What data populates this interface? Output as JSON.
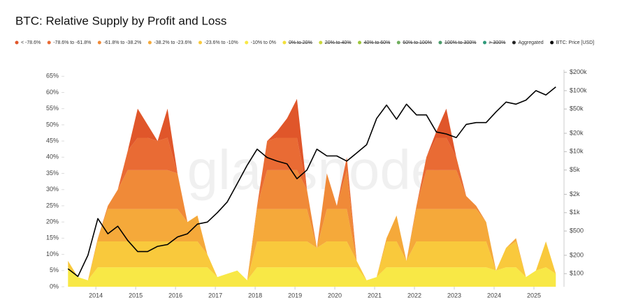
{
  "chart_data": {
    "type": "stacked_area",
    "title": "BTC: Relative Supply by Profit and Loss",
    "watermark": "glassnode",
    "x": [
      2013.3,
      2013.55,
      2013.8,
      2014.05,
      2014.3,
      2014.55,
      2014.8,
      2015.05,
      2015.3,
      2015.55,
      2015.8,
      2016.05,
      2016.3,
      2016.55,
      2016.8,
      2017.05,
      2017.3,
      2017.55,
      2017.8,
      2018.05,
      2018.3,
      2018.55,
      2018.8,
      2019.05,
      2019.3,
      2019.55,
      2019.8,
      2020.05,
      2020.3,
      2020.55,
      2020.8,
      2021.05,
      2021.3,
      2021.55,
      2021.8,
      2022.05,
      2022.3,
      2022.55,
      2022.8,
      2023.05,
      2023.3,
      2023.55,
      2023.8,
      2024.05,
      2024.3,
      2024.55,
      2024.8,
      2025.05,
      2025.3,
      2025.55
    ],
    "xlim": [
      2013.26,
      2025.72
    ],
    "xticks": [
      2014,
      2015,
      2016,
      2017,
      2018,
      2019,
      2020,
      2021,
      2022,
      2023,
      2024,
      2025
    ],
    "ylim": [
      0,
      67
    ],
    "yticks": [
      {
        "value": 0,
        "label": "0%"
      },
      {
        "value": 5,
        "label": "5%"
      },
      {
        "value": 10,
        "label": "10%"
      },
      {
        "value": 15,
        "label": "15%"
      },
      {
        "value": 20,
        "label": "20%"
      },
      {
        "value": 25,
        "label": "25%"
      },
      {
        "value": 30,
        "label": "30%"
      },
      {
        "value": 35,
        "label": "35%"
      },
      {
        "value": 40,
        "label": "40%"
      },
      {
        "value": 45,
        "label": "45%"
      },
      {
        "value": 50,
        "label": "50%"
      },
      {
        "value": 55,
        "label": "55%"
      },
      {
        "value": 60,
        "label": "60%"
      },
      {
        "value": 65,
        "label": "65%"
      }
    ],
    "y2lim": [
      61,
      220000
    ],
    "y2_log": true,
    "y2ticks": [
      {
        "value": 100,
        "label": "$100"
      },
      {
        "value": 200,
        "label": "$200"
      },
      {
        "value": 500,
        "label": "$500"
      },
      {
        "value": 1000,
        "label": "$1k"
      },
      {
        "value": 2000,
        "label": "$2k"
      },
      {
        "value": 5000,
        "label": "$5k"
      },
      {
        "value": 10000,
        "label": "$10k"
      },
      {
        "value": 20000,
        "label": "$20k"
      },
      {
        "value": 50000,
        "label": "$50k"
      },
      {
        "value": 100000,
        "label": "$100k"
      },
      {
        "value": 200000,
        "label": "$200k"
      }
    ],
    "grid": false,
    "series": [
      {
        "name": "< -78.6%",
        "color": "#e0562a",
        "values": [
          0,
          0,
          0,
          0,
          0,
          0,
          0,
          9,
          4,
          0,
          9,
          0,
          0,
          0,
          0,
          0,
          0,
          0,
          0,
          0,
          0,
          2,
          6,
          12,
          0,
          0,
          0,
          0,
          0,
          0,
          0,
          0,
          0,
          0,
          0,
          0,
          0,
          2,
          9,
          0,
          0,
          0,
          0,
          0,
          0,
          0,
          0,
          0,
          0,
          0
        ]
      },
      {
        "name": "-78.6% to -61.8%",
        "color": "#e96b34",
        "values": [
          0,
          0,
          0,
          0,
          0,
          0,
          6,
          10,
          10,
          9,
          10,
          0,
          0,
          0,
          0,
          0,
          0,
          0,
          0,
          0,
          9,
          10,
          10,
          10,
          0,
          0,
          0,
          0,
          4,
          0,
          0,
          0,
          0,
          0,
          0,
          0,
          4,
          10,
          10,
          4,
          0,
          0,
          0,
          0,
          0,
          0,
          0,
          0,
          0,
          0
        ]
      },
      {
        "name": "-61.8% to -38.2%",
        "color": "#f08a38",
        "values": [
          0,
          0,
          0,
          0,
          1,
          6,
          12,
          12,
          12,
          12,
          12,
          11,
          0,
          0,
          0,
          0,
          0,
          0,
          0,
          1,
          12,
          12,
          12,
          12,
          6,
          0,
          11,
          1,
          12,
          0,
          0,
          0,
          0,
          0,
          0,
          1,
          12,
          12,
          12,
          12,
          4,
          1,
          0,
          0,
          0,
          0,
          0,
          0,
          0,
          0
        ]
      },
      {
        "name": "-38.2% to -23.6%",
        "color": "#f5a93a",
        "values": [
          0,
          0,
          0,
          1,
          10,
          10,
          10,
          10,
          10,
          10,
          10,
          10,
          6,
          8,
          0,
          0,
          0,
          0,
          0,
          10,
          10,
          10,
          10,
          10,
          10,
          0,
          10,
          10,
          10,
          0,
          0,
          0,
          1,
          8,
          0,
          10,
          10,
          10,
          10,
          10,
          10,
          10,
          6,
          0,
          0,
          1,
          0,
          0,
          0,
          0
        ]
      },
      {
        "name": "-23.6% to -10%",
        "color": "#f9c93c",
        "values": [
          2,
          0,
          0,
          8,
          8,
          8,
          8,
          8,
          8,
          8,
          8,
          8,
          8,
          8,
          4,
          0,
          0,
          0,
          0,
          8,
          8,
          8,
          8,
          8,
          8,
          6,
          8,
          8,
          8,
          2,
          0,
          0,
          8,
          8,
          2,
          8,
          8,
          8,
          8,
          8,
          8,
          8,
          8,
          0,
          6,
          8,
          0,
          0,
          8,
          0
        ]
      },
      {
        "name": "-10% to 0%",
        "color": "#f8e846",
        "values": [
          6,
          3,
          2,
          6,
          6,
          6,
          6,
          6,
          6,
          6,
          6,
          6,
          6,
          6,
          6,
          3,
          4,
          5,
          2,
          6,
          6,
          6,
          6,
          6,
          6,
          6,
          6,
          6,
          6,
          6,
          2,
          3,
          6,
          6,
          6,
          6,
          6,
          6,
          6,
          6,
          6,
          6,
          6,
          5,
          6,
          6,
          3,
          5,
          6,
          4
        ]
      },
      {
        "name": "BTC: Price [USD]",
        "color": "#000000",
        "axis": "y2",
        "values": [
          120,
          90,
          200,
          800,
          450,
          600,
          350,
          230,
          230,
          280,
          300,
          400,
          450,
          650,
          700,
          1000,
          1500,
          3000,
          6000,
          11000,
          8000,
          7000,
          6300,
          3600,
          5000,
          11000,
          8500,
          8500,
          7000,
          9500,
          13000,
          35000,
          58000,
          34000,
          60000,
          40000,
          40000,
          21000,
          19500,
          17000,
          28000,
          30000,
          30000,
          45000,
          65000,
          60000,
          70000,
          100000,
          85000,
          115000
        ]
      }
    ],
    "legend_only": [
      {
        "name": "0% to 20%",
        "color": "#f3e03a",
        "struck": true
      },
      {
        "name": "20% to 40%",
        "color": "#c9d63b",
        "struck": true
      },
      {
        "name": "40% to 60%",
        "color": "#9dc63c",
        "struck": true
      },
      {
        "name": "60% to 100%",
        "color": "#6fae5c",
        "struck": true
      },
      {
        "name": "100% to 300%",
        "color": "#4b9b6a",
        "struck": true
      },
      {
        "name": "> 300%",
        "color": "#2f9a7b",
        "struck": true
      },
      {
        "name": "Aggregated",
        "color": "#222222",
        "struck": false
      }
    ]
  }
}
